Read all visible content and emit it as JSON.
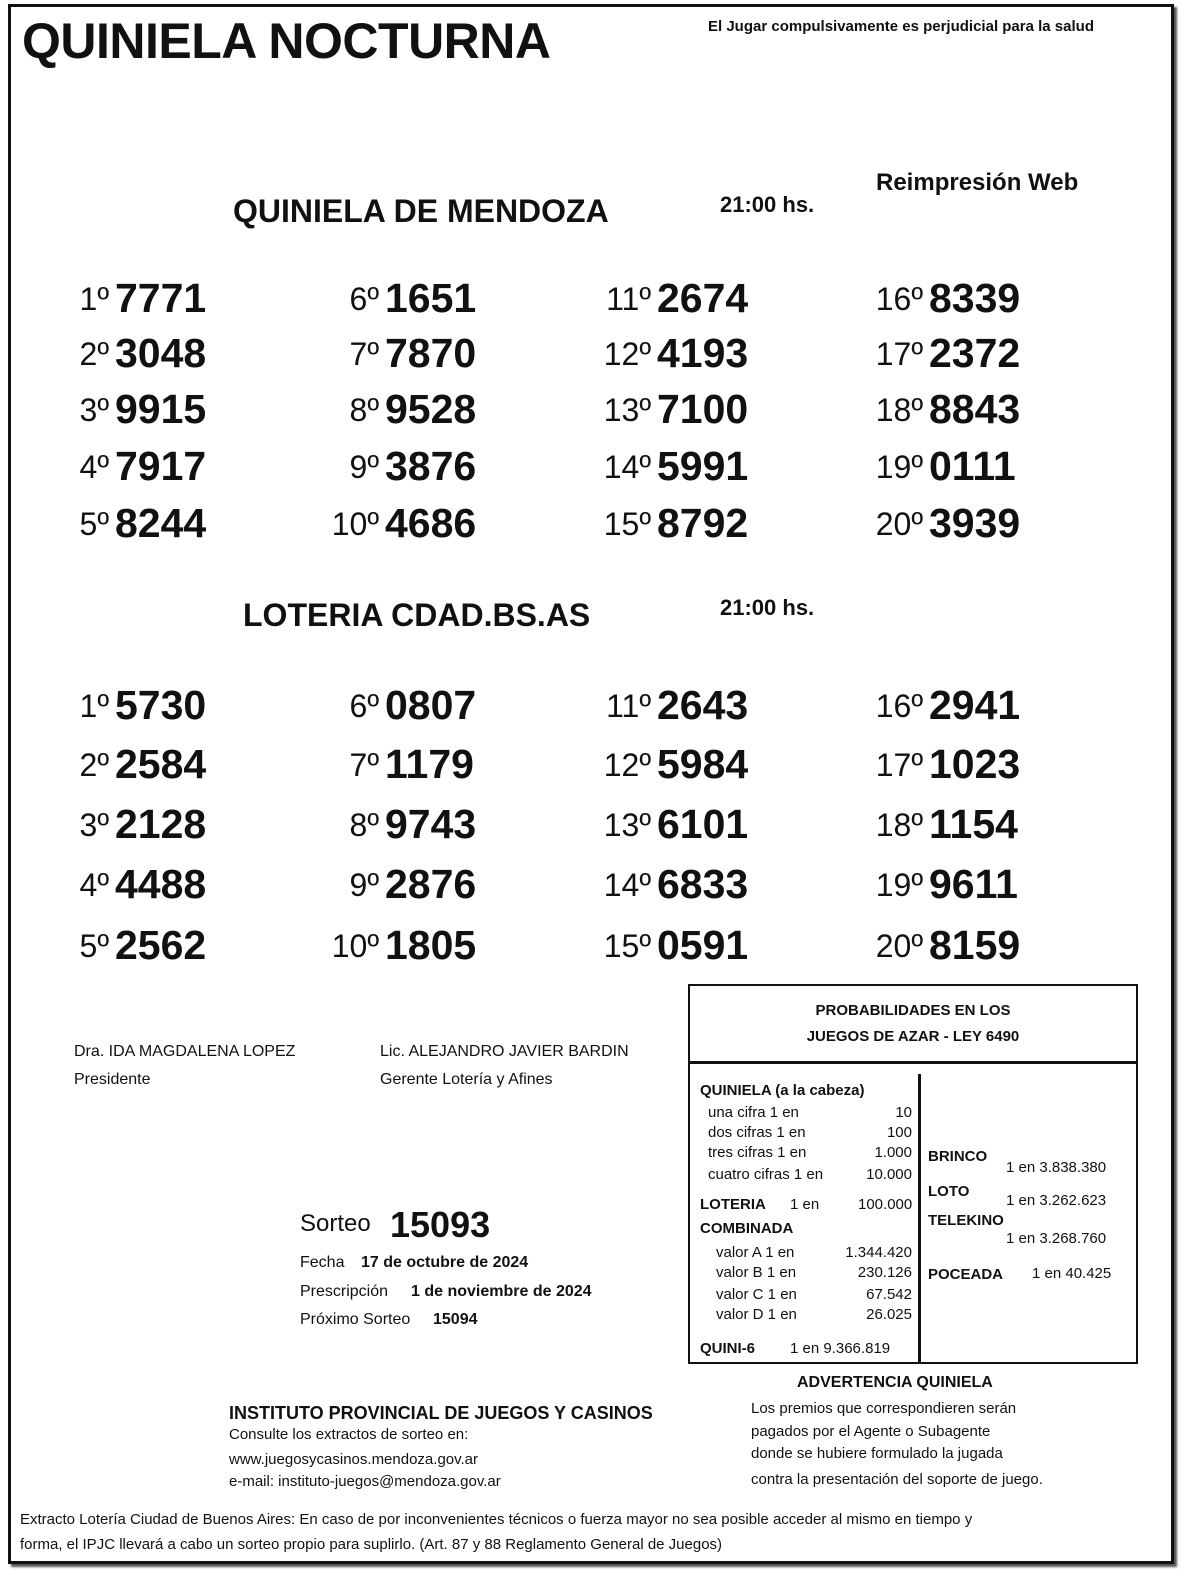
{
  "header": {
    "title": "QUINIELA NOCTURNA",
    "warning": "El Jugar compulsivamente es perjudicial para la salud",
    "reprint": "Reimpresión Web"
  },
  "mendoza": {
    "title": "QUINIELA  DE MENDOZA",
    "time": "21:00 hs.",
    "results": [
      [
        "1º",
        "7771"
      ],
      [
        "2º",
        "3048"
      ],
      [
        "3º",
        "9915"
      ],
      [
        "4º",
        "7917"
      ],
      [
        "5º",
        "8244"
      ],
      [
        "6º",
        "1651"
      ],
      [
        "7º",
        "7870"
      ],
      [
        "8º",
        "9528"
      ],
      [
        "9º",
        "3876"
      ],
      [
        "10º",
        "4686"
      ],
      [
        "11º",
        "2674"
      ],
      [
        "12º",
        "4193"
      ],
      [
        "13º",
        "7100"
      ],
      [
        "14º",
        "5991"
      ],
      [
        "15º",
        "8792"
      ],
      [
        "16º",
        "8339"
      ],
      [
        "17º",
        "2372"
      ],
      [
        "18º",
        "8843"
      ],
      [
        "19º",
        "0111"
      ],
      [
        "20º",
        "3939"
      ]
    ]
  },
  "buenos_aires": {
    "title": "LOTERIA CDAD.BS.AS",
    "time": "21:00 hs.",
    "results": [
      [
        "1º",
        "5730"
      ],
      [
        "2º",
        "2584"
      ],
      [
        "3º",
        "2128"
      ],
      [
        "4º",
        "4488"
      ],
      [
        "5º",
        "2562"
      ],
      [
        "6º",
        "0807"
      ],
      [
        "7º",
        "1179"
      ],
      [
        "8º",
        "9743"
      ],
      [
        "9º",
        "2876"
      ],
      [
        "10º",
        "1805"
      ],
      [
        "11º",
        "2643"
      ],
      [
        "12º",
        "5984"
      ],
      [
        "13º",
        "6101"
      ],
      [
        "14º",
        "6833"
      ],
      [
        "15º",
        "0591"
      ],
      [
        "16º",
        "2941"
      ],
      [
        "17º",
        "1023"
      ],
      [
        "18º",
        "1154"
      ],
      [
        "19º",
        "9611"
      ],
      [
        "20º",
        "8159"
      ]
    ]
  },
  "signatures": [
    {
      "name": "Dra. IDA MAGDALENA LOPEZ",
      "role": "Presidente"
    },
    {
      "name": "Lic. ALEJANDRO JAVIER BARDIN",
      "role": "Gerente Lotería y Afines"
    }
  ],
  "sorteo": {
    "label": "Sorteo",
    "number": "15093",
    "fecha_label": "Fecha",
    "fecha": "17 de octubre de 2024",
    "prescripcion_label": "Prescripción",
    "prescripcion": "1 de noviembre de 2024",
    "proximo_label": "Próximo Sorteo",
    "proximo": "15094"
  },
  "probabilities": {
    "title1": "PROBABILIDADES EN LOS",
    "title2": "JUEGOS DE AZAR - LEY 6490",
    "quiniela_title": "QUINIELA (a la cabeza)",
    "quiniela": [
      [
        "una cifra  1 en",
        "10"
      ],
      [
        "dos cifras 1 en",
        "100"
      ],
      [
        "tres cifras 1 en",
        "1.000"
      ],
      [
        "cuatro cifras 1 en",
        "10.000"
      ]
    ],
    "loteria": {
      "label": "LOTERIA",
      "odds": "1 en",
      "value": "100.000"
    },
    "combinada_title": "COMBINADA",
    "combinada": [
      [
        "valor A 1 en",
        "1.344.420"
      ],
      [
        "valor B 1 en",
        "230.126"
      ],
      [
        "valor C 1 en",
        "67.542"
      ],
      [
        "valor D 1 en",
        "26.025"
      ]
    ],
    "quini6": {
      "label": "QUINI-6",
      "value": "1 en  9.366.819"
    },
    "brinco": {
      "label": "BRINCO",
      "value": "1 en 3.838.380"
    },
    "loto": {
      "label": "LOTO",
      "value": "1 en 3.262.623"
    },
    "telekino": {
      "label": "TELEKINO",
      "value": "1 en 3.268.760"
    },
    "poceada": {
      "label": "POCEADA",
      "value": "1 en 40.425"
    }
  },
  "institute": {
    "name": "INSTITUTO PROVINCIAL DE JUEGOS Y CASINOS",
    "line1": "Consulte los extractos de sorteo en:",
    "web": "www.juegosycasinos.mendoza.gov.ar",
    "email": "e-mail:  instituto-juegos@mendoza.gov.ar"
  },
  "advertencia": {
    "title": "ADVERTENCIA QUINIELA",
    "lines": [
      "Los premios que correspondieren serán",
      "pagados por el Agente o Subagente",
      "donde se hubiere formulado la jugada",
      "contra la presentación del soporte de juego."
    ]
  },
  "footer": {
    "line1": "Extracto Lotería Ciudad de Buenos Aires: En caso de por inconvenientes técnicos o fuerza mayor no sea posible acceder al mismo en tiempo y",
    "line2": "forma, el IPJC llevará a cabo un sorteo propio para suplirlo. (Art. 87 y 88 Reglamento General de Juegos)"
  }
}
